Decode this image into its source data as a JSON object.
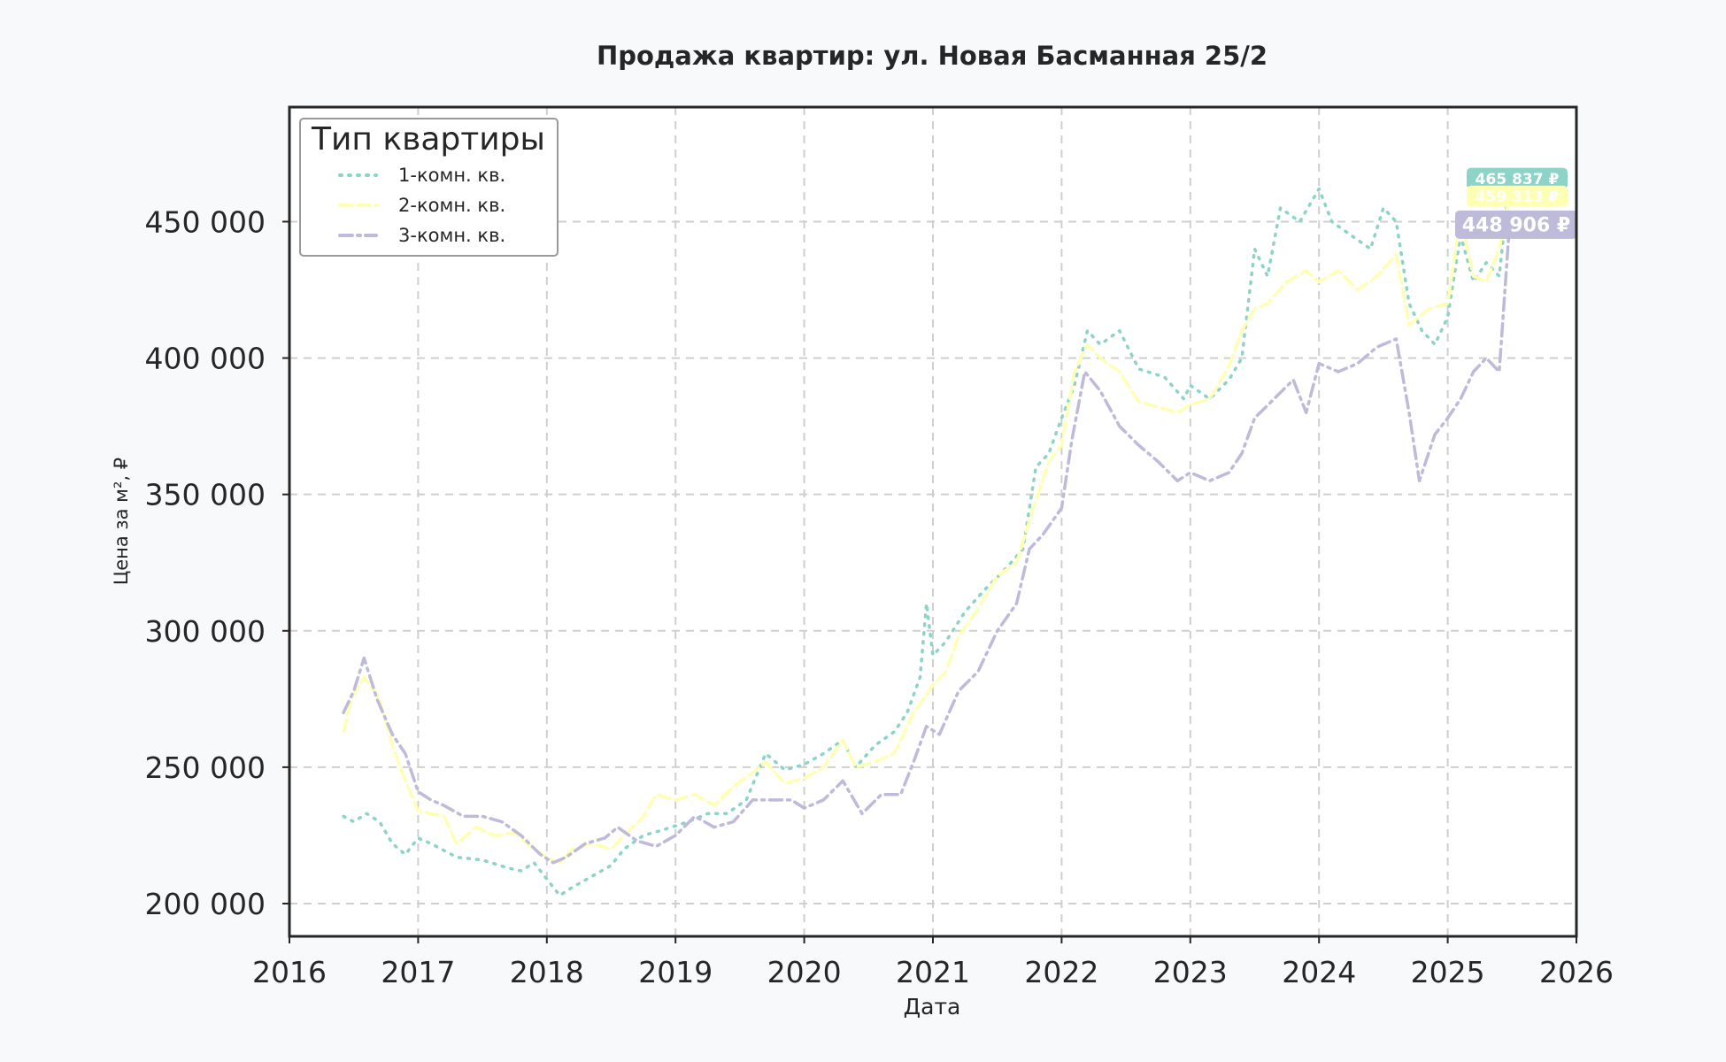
{
  "chart_data": {
    "type": "line",
    "title": "Продажа квартир: ул. Новая Басманная 25/2",
    "xlabel": "Дата",
    "ylabel": "Цена за м², ₽",
    "xlim": [
      2016.0,
      2026.0
    ],
    "ylim": [
      188000,
      492000
    ],
    "x_ticks": [
      2016,
      2017,
      2018,
      2019,
      2020,
      2021,
      2022,
      2023,
      2024,
      2025,
      2026
    ],
    "x_tick_labels": [
      "2016",
      "2017",
      "2018",
      "2019",
      "2020",
      "2021",
      "2022",
      "2023",
      "2024",
      "2025",
      "2026"
    ],
    "y_ticks": [
      200000,
      250000,
      300000,
      350000,
      400000,
      450000
    ],
    "y_tick_labels": [
      "200 000",
      "250 000",
      "300 000",
      "350 000",
      "400 000",
      "450 000"
    ],
    "grid": true,
    "legend": {
      "title": "Тип квартиры",
      "placement": "top-left"
    },
    "series": [
      {
        "name": "1-комн. кв.",
        "color": "#8dd3c7",
        "dash": "dotted",
        "end_label": "465 837 ₽",
        "points": [
          [
            2016.42,
            232000
          ],
          [
            2016.5,
            230000
          ],
          [
            2016.6,
            233000
          ],
          [
            2016.7,
            230000
          ],
          [
            2016.8,
            222000
          ],
          [
            2016.9,
            218000
          ],
          [
            2017.0,
            224000
          ],
          [
            2017.1,
            222000
          ],
          [
            2017.3,
            217000
          ],
          [
            2017.5,
            216000
          ],
          [
            2017.7,
            213000
          ],
          [
            2017.8,
            212000
          ],
          [
            2017.9,
            215000
          ],
          [
            2018.0,
            209000
          ],
          [
            2018.1,
            203000
          ],
          [
            2018.2,
            206000
          ],
          [
            2018.35,
            210000
          ],
          [
            2018.5,
            214000
          ],
          [
            2018.6,
            220000
          ],
          [
            2018.75,
            225000
          ],
          [
            2018.9,
            227000
          ],
          [
            2019.1,
            230000
          ],
          [
            2019.25,
            233000
          ],
          [
            2019.4,
            233000
          ],
          [
            2019.55,
            238000
          ],
          [
            2019.7,
            255000
          ],
          [
            2019.85,
            249000
          ],
          [
            2020.0,
            251000
          ],
          [
            2020.15,
            255000
          ],
          [
            2020.3,
            260000
          ],
          [
            2020.4,
            250000
          ],
          [
            2020.55,
            258000
          ],
          [
            2020.7,
            263000
          ],
          [
            2020.8,
            270000
          ],
          [
            2020.9,
            283000
          ],
          [
            2020.95,
            310000
          ],
          [
            2021.0,
            291000
          ],
          [
            2021.1,
            296000
          ],
          [
            2021.25,
            307000
          ],
          [
            2021.4,
            315000
          ],
          [
            2021.55,
            322000
          ],
          [
            2021.7,
            330000
          ],
          [
            2021.8,
            360000
          ],
          [
            2021.9,
            365000
          ],
          [
            2022.0,
            378000
          ],
          [
            2022.1,
            390000
          ],
          [
            2022.2,
            410000
          ],
          [
            2022.3,
            405000
          ],
          [
            2022.45,
            410000
          ],
          [
            2022.6,
            396000
          ],
          [
            2022.8,
            393000
          ],
          [
            2022.95,
            385000
          ],
          [
            2023.0,
            390000
          ],
          [
            2023.15,
            385000
          ],
          [
            2023.3,
            392000
          ],
          [
            2023.4,
            400000
          ],
          [
            2023.5,
            440000
          ],
          [
            2023.6,
            430000
          ],
          [
            2023.7,
            455000
          ],
          [
            2023.85,
            450000
          ],
          [
            2024.0,
            462000
          ],
          [
            2024.1,
            450000
          ],
          [
            2024.25,
            445000
          ],
          [
            2024.4,
            440000
          ],
          [
            2024.5,
            455000
          ],
          [
            2024.6,
            450000
          ],
          [
            2024.7,
            420000
          ],
          [
            2024.8,
            410000
          ],
          [
            2024.9,
            405000
          ],
          [
            2025.0,
            415000
          ],
          [
            2025.1,
            445000
          ],
          [
            2025.2,
            428000
          ],
          [
            2025.3,
            435000
          ],
          [
            2025.4,
            430000
          ],
          [
            2025.48,
            465837
          ]
        ]
      },
      {
        "name": "2-комн. кв.",
        "color": "#ffffb3",
        "dash": "dashed",
        "end_label": "459 313 ₽",
        "points": [
          [
            2016.42,
            263000
          ],
          [
            2016.48,
            275000
          ],
          [
            2016.58,
            283000
          ],
          [
            2016.7,
            275000
          ],
          [
            2016.8,
            258000
          ],
          [
            2016.9,
            245000
          ],
          [
            2017.0,
            234000
          ],
          [
            2017.1,
            233000
          ],
          [
            2017.2,
            232000
          ],
          [
            2017.3,
            222000
          ],
          [
            2017.45,
            228000
          ],
          [
            2017.6,
            225000
          ],
          [
            2017.75,
            226000
          ],
          [
            2017.9,
            220000
          ],
          [
            2018.0,
            217000
          ],
          [
            2018.1,
            215000
          ],
          [
            2018.2,
            220000
          ],
          [
            2018.35,
            222000
          ],
          [
            2018.5,
            220000
          ],
          [
            2018.6,
            225000
          ],
          [
            2018.75,
            232000
          ],
          [
            2018.85,
            240000
          ],
          [
            2019.0,
            238000
          ],
          [
            2019.15,
            240000
          ],
          [
            2019.3,
            236000
          ],
          [
            2019.45,
            243000
          ],
          [
            2019.6,
            248000
          ],
          [
            2019.7,
            252000
          ],
          [
            2019.85,
            244000
          ],
          [
            2020.0,
            246000
          ],
          [
            2020.15,
            250000
          ],
          [
            2020.3,
            260000
          ],
          [
            2020.4,
            250000
          ],
          [
            2020.55,
            252000
          ],
          [
            2020.7,
            255000
          ],
          [
            2020.85,
            270000
          ],
          [
            2021.0,
            280000
          ],
          [
            2021.1,
            285000
          ],
          [
            2021.2,
            298000
          ],
          [
            2021.35,
            308000
          ],
          [
            2021.5,
            320000
          ],
          [
            2021.65,
            325000
          ],
          [
            2021.8,
            348000
          ],
          [
            2021.9,
            362000
          ],
          [
            2022.0,
            368000
          ],
          [
            2022.1,
            395000
          ],
          [
            2022.2,
            405000
          ],
          [
            2022.3,
            400000
          ],
          [
            2022.45,
            395000
          ],
          [
            2022.6,
            384000
          ],
          [
            2022.75,
            382000
          ],
          [
            2022.9,
            380000
          ],
          [
            2023.0,
            383000
          ],
          [
            2023.15,
            385000
          ],
          [
            2023.3,
            397000
          ],
          [
            2023.4,
            410000
          ],
          [
            2023.5,
            418000
          ],
          [
            2023.6,
            420000
          ],
          [
            2023.75,
            428000
          ],
          [
            2023.9,
            432000
          ],
          [
            2024.0,
            428000
          ],
          [
            2024.15,
            432000
          ],
          [
            2024.3,
            425000
          ],
          [
            2024.45,
            430000
          ],
          [
            2024.6,
            438000
          ],
          [
            2024.7,
            412000
          ],
          [
            2024.85,
            418000
          ],
          [
            2025.0,
            420000
          ],
          [
            2025.1,
            452000
          ],
          [
            2025.2,
            430000
          ],
          [
            2025.3,
            428000
          ],
          [
            2025.4,
            440000
          ],
          [
            2025.48,
            459313
          ]
        ]
      },
      {
        "name": "3-комн. кв.",
        "color": "#bebada",
        "dash": "dashdot",
        "end_label": "448 906 ₽",
        "points": [
          [
            2016.42,
            270000
          ],
          [
            2016.5,
            278000
          ],
          [
            2016.58,
            290000
          ],
          [
            2016.68,
            275000
          ],
          [
            2016.8,
            262000
          ],
          [
            2016.9,
            255000
          ],
          [
            2017.0,
            241000
          ],
          [
            2017.1,
            238000
          ],
          [
            2017.2,
            236000
          ],
          [
            2017.35,
            232000
          ],
          [
            2017.5,
            232000
          ],
          [
            2017.65,
            230000
          ],
          [
            2017.8,
            225000
          ],
          [
            2017.95,
            218000
          ],
          [
            2018.05,
            215000
          ],
          [
            2018.15,
            217000
          ],
          [
            2018.3,
            222000
          ],
          [
            2018.45,
            224000
          ],
          [
            2018.55,
            228000
          ],
          [
            2018.7,
            223000
          ],
          [
            2018.85,
            221000
          ],
          [
            2019.0,
            225000
          ],
          [
            2019.15,
            232000
          ],
          [
            2019.3,
            228000
          ],
          [
            2019.45,
            230000
          ],
          [
            2019.6,
            238000
          ],
          [
            2019.75,
            238000
          ],
          [
            2019.9,
            238000
          ],
          [
            2020.0,
            235000
          ],
          [
            2020.15,
            238000
          ],
          [
            2020.3,
            245000
          ],
          [
            2020.45,
            233000
          ],
          [
            2020.6,
            240000
          ],
          [
            2020.75,
            240000
          ],
          [
            2020.85,
            252000
          ],
          [
            2020.95,
            265000
          ],
          [
            2021.05,
            262000
          ],
          [
            2021.2,
            278000
          ],
          [
            2021.35,
            285000
          ],
          [
            2021.5,
            300000
          ],
          [
            2021.65,
            310000
          ],
          [
            2021.75,
            330000
          ],
          [
            2021.85,
            335000
          ],
          [
            2022.0,
            345000
          ],
          [
            2022.08,
            370000
          ],
          [
            2022.18,
            395000
          ],
          [
            2022.3,
            388000
          ],
          [
            2022.45,
            375000
          ],
          [
            2022.6,
            368000
          ],
          [
            2022.75,
            362000
          ],
          [
            2022.9,
            355000
          ],
          [
            2023.0,
            358000
          ],
          [
            2023.15,
            355000
          ],
          [
            2023.3,
            358000
          ],
          [
            2023.4,
            365000
          ],
          [
            2023.5,
            378000
          ],
          [
            2023.65,
            385000
          ],
          [
            2023.8,
            392000
          ],
          [
            2023.9,
            380000
          ],
          [
            2024.0,
            398000
          ],
          [
            2024.15,
            395000
          ],
          [
            2024.3,
            398000
          ],
          [
            2024.45,
            404000
          ],
          [
            2024.6,
            407000
          ],
          [
            2024.7,
            380000
          ],
          [
            2024.78,
            355000
          ],
          [
            2024.9,
            372000
          ],
          [
            2025.0,
            378000
          ],
          [
            2025.1,
            385000
          ],
          [
            2025.2,
            395000
          ],
          [
            2025.3,
            400000
          ],
          [
            2025.4,
            395000
          ],
          [
            2025.48,
            448906
          ]
        ]
      }
    ]
  }
}
